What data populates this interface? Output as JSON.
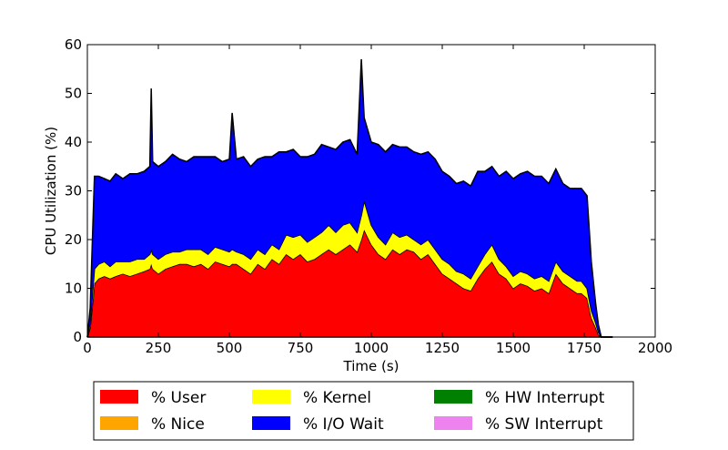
{
  "chart_data": {
    "type": "area",
    "stacked": true,
    "title": "",
    "xlabel": "Time (s)",
    "ylabel": "CPU Utilization (%)",
    "xlim": [
      0,
      2000
    ],
    "ylim": [
      0,
      60
    ],
    "xticks": [
      0,
      250,
      500,
      750,
      1000,
      1250,
      1500,
      1750,
      2000
    ],
    "yticks": [
      0,
      10,
      20,
      30,
      40,
      50,
      60
    ],
    "grid": false,
    "legend_placement": "below",
    "x": [
      0,
      10,
      25,
      40,
      60,
      80,
      100,
      125,
      150,
      175,
      200,
      220,
      225,
      230,
      250,
      275,
      300,
      325,
      350,
      375,
      400,
      425,
      450,
      475,
      500,
      510,
      525,
      550,
      575,
      600,
      625,
      650,
      675,
      700,
      725,
      750,
      775,
      800,
      825,
      850,
      875,
      900,
      925,
      950,
      965,
      975,
      1000,
      1025,
      1050,
      1075,
      1100,
      1125,
      1150,
      1175,
      1200,
      1225,
      1250,
      1275,
      1300,
      1325,
      1350,
      1375,
      1400,
      1425,
      1450,
      1475,
      1500,
      1525,
      1550,
      1575,
      1600,
      1625,
      1650,
      1675,
      1700,
      1725,
      1740,
      1760,
      1775,
      1790,
      1800,
      1810,
      1825,
      1850
    ],
    "series": [
      {
        "name": "% User",
        "color": "#ff0000",
        "values": [
          0,
          2,
          11,
          12,
          12.5,
          12,
          12.5,
          13,
          12.5,
          13,
          13.5,
          14,
          15,
          14,
          13,
          14,
          14.5,
          15,
          15,
          14.5,
          15,
          14,
          15.5,
          15,
          14.5,
          15,
          15,
          14,
          13,
          15,
          14,
          16,
          15,
          17,
          16,
          17,
          15.5,
          16,
          17,
          18,
          17,
          18,
          19,
          17.5,
          20,
          22,
          19,
          17,
          16,
          18,
          17,
          18,
          17.5,
          16,
          17,
          15,
          13,
          12,
          11,
          10,
          9.5,
          12,
          14,
          15.5,
          13,
          12,
          10,
          11,
          10.5,
          9.5,
          10,
          9,
          13,
          11,
          10,
          9,
          9,
          8,
          4,
          2,
          0.5,
          0,
          0,
          0
        ]
      },
      {
        "name": "% Nice",
        "color": "#ffa500",
        "values": [
          0,
          0,
          0,
          0,
          0,
          0,
          0,
          0,
          0,
          0,
          0,
          0,
          0,
          0,
          0,
          0,
          0,
          0,
          0,
          0,
          0,
          0,
          0,
          0,
          0,
          0,
          0,
          0,
          0,
          0,
          0,
          0,
          0,
          0,
          0,
          0,
          0,
          0,
          0,
          0,
          0,
          0,
          0,
          0,
          0,
          0,
          0,
          0,
          0,
          0,
          0,
          0,
          0,
          0,
          0,
          0,
          0,
          0,
          0,
          0,
          0,
          0,
          0,
          0,
          0,
          0,
          0,
          0,
          0,
          0,
          0,
          0,
          0,
          0,
          0,
          0,
          0,
          0,
          0,
          0,
          0,
          0,
          0,
          0
        ]
      },
      {
        "name": "% Kernel",
        "color": "#ffff00",
        "values": [
          0,
          1,
          3,
          3,
          3,
          2.5,
          3,
          2.5,
          3,
          3,
          2.5,
          3,
          3,
          3,
          3,
          3,
          3,
          2.5,
          3,
          3.5,
          3,
          3,
          3,
          3,
          3,
          3,
          2.5,
          3,
          3,
          3,
          3,
          3,
          3,
          4,
          4.5,
          4,
          4,
          4.5,
          4.5,
          5,
          4.5,
          5,
          4.5,
          4,
          5,
          6,
          4,
          3.5,
          3,
          3.5,
          3.5,
          3,
          2.5,
          3,
          3,
          3,
          3,
          3,
          2.5,
          3,
          2.5,
          2.5,
          3,
          3.5,
          3,
          2.5,
          2.5,
          2.5,
          2.5,
          2.5,
          2.5,
          2.5,
          2.5,
          2.5,
          2.5,
          2.5,
          2.5,
          2,
          1.5,
          1,
          0.5,
          0,
          0,
          0
        ]
      },
      {
        "name": "% I/O Wait",
        "color": "#0000ff",
        "values": [
          0,
          3,
          19,
          18,
          17,
          17.5,
          18,
          17,
          18,
          17.5,
          18,
          18,
          33,
          19,
          19,
          19,
          20,
          19,
          18,
          19,
          19,
          20,
          18.5,
          18,
          19,
          28,
          19,
          20,
          19,
          18.5,
          20,
          18,
          20,
          17,
          18,
          16,
          17.5,
          17,
          18,
          16,
          17,
          17,
          17,
          16,
          32,
          17,
          17,
          19,
          19,
          18,
          18.5,
          18,
          18,
          18.5,
          18,
          18.5,
          18,
          18,
          18,
          19,
          19,
          19.5,
          17,
          16,
          17,
          19.5,
          20,
          20,
          21,
          21,
          20.5,
          20,
          19,
          18,
          18,
          19,
          19,
          19,
          10,
          4,
          1.5,
          0,
          0,
          0
        ]
      },
      {
        "name": "% HW Interrupt",
        "color": "#008000",
        "values": [
          0,
          0,
          0,
          0,
          0,
          0,
          0,
          0,
          0,
          0,
          0,
          0,
          0,
          0,
          0,
          0,
          0,
          0,
          0,
          0,
          0,
          0,
          0,
          0,
          0,
          0,
          0,
          0,
          0,
          0,
          0,
          0,
          0,
          0,
          0,
          0,
          0,
          0,
          0,
          0,
          0,
          0,
          0,
          0,
          0,
          0,
          0,
          0,
          0,
          0,
          0,
          0,
          0,
          0,
          0,
          0,
          0,
          0,
          0,
          0,
          0,
          0,
          0,
          0,
          0,
          0,
          0,
          0,
          0,
          0,
          0,
          0,
          0,
          0,
          0,
          0,
          0,
          0,
          0,
          0,
          0,
          0,
          0,
          0
        ]
      },
      {
        "name": "% SW Interrupt",
        "color": "#ee82ee",
        "values": [
          0,
          0,
          0,
          0,
          0,
          0,
          0,
          0,
          0,
          0,
          0,
          0,
          0,
          0,
          0,
          0,
          0,
          0,
          0,
          0,
          0,
          0,
          0,
          0,
          0,
          0,
          0,
          0,
          0,
          0,
          0,
          0,
          0,
          0,
          0,
          0,
          0,
          0,
          0,
          0,
          0,
          0,
          0,
          0,
          0,
          0,
          0,
          0,
          0,
          0,
          0,
          0,
          0,
          0,
          0,
          0,
          0,
          0,
          0,
          0,
          0,
          0,
          0,
          0,
          0,
          0,
          0,
          0,
          0,
          0,
          0,
          0,
          0,
          0,
          0,
          0,
          0,
          0,
          0,
          0,
          0,
          0,
          0,
          0
        ]
      }
    ]
  }
}
